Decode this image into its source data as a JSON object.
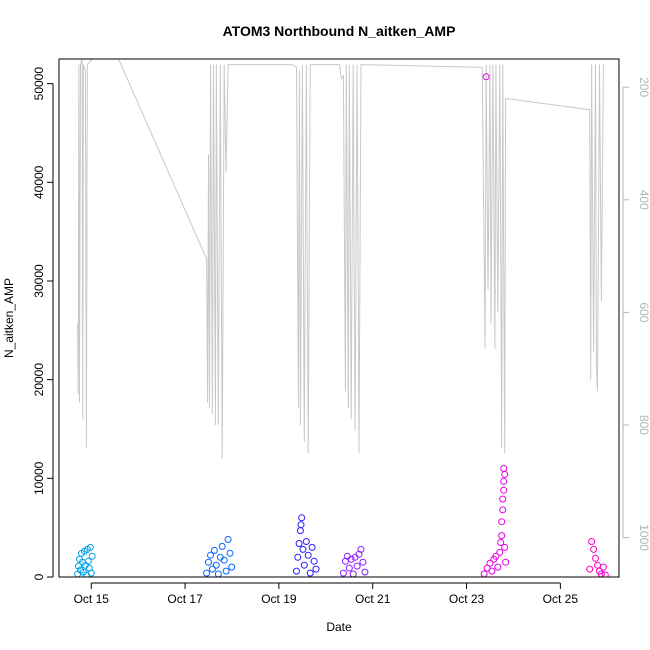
{
  "chart_data": {
    "type": "scatter",
    "title": "ATOM3 Northbound N_aitken_AMP",
    "xlabel": "Date",
    "ylabel": "N_aitken_AMP",
    "x_type": "date",
    "xlim": [
      "2013-10-14 07:30",
      "2013-10-26 06:00"
    ],
    "ylim": [
      0,
      52500
    ],
    "y_ticks": [
      "0",
      "10000",
      "20000",
      "30000",
      "40000",
      "50000"
    ],
    "x_ticks": [
      {
        "date": "2013-10-15",
        "label": "Oct 15"
      },
      {
        "date": "2013-10-17",
        "label": "Oct 17"
      },
      {
        "date": "2013-10-19",
        "label": "Oct 19"
      },
      {
        "date": "2013-10-21",
        "label": "Oct 21"
      },
      {
        "date": "2013-10-23",
        "label": "Oct 23"
      },
      {
        "date": "2013-10-25",
        "label": "Oct 25"
      }
    ],
    "y2_ticks": [
      "200",
      "400",
      "600",
      "800",
      "1000"
    ],
    "y2_lim": [
      150,
      1070
    ],
    "y2_reversed": true,
    "secondary_color": "#c8c8c8",
    "series": [
      {
        "color": "#00a2e8",
        "points": [
          {
            "x": "2013-10-14 17:00",
            "y": 300
          },
          {
            "x": "2013-10-14 17:30",
            "y": 1100
          },
          {
            "x": "2013-10-14 18:00",
            "y": 1800
          },
          {
            "x": "2013-10-14 18:30",
            "y": 700
          },
          {
            "x": "2013-10-14 19:00",
            "y": 2400
          },
          {
            "x": "2013-10-14 19:30",
            "y": 1500
          },
          {
            "x": "2013-10-14 20:00",
            "y": 500
          },
          {
            "x": "2013-10-14 20:30",
            "y": 2600
          },
          {
            "x": "2013-10-14 21:00",
            "y": 1200
          },
          {
            "x": "2013-10-14 21:30",
            "y": 200
          },
          {
            "x": "2013-10-14 22:00",
            "y": 2800
          },
          {
            "x": "2013-10-14 22:30",
            "y": 1600
          },
          {
            "x": "2013-10-14 23:00",
            "y": 900
          },
          {
            "x": "2013-10-14 23:30",
            "y": 3000
          },
          {
            "x": "2013-10-15 00:00",
            "y": 400
          },
          {
            "x": "2013-10-15 00:30",
            "y": 2100
          }
        ]
      },
      {
        "color": "#0066ff",
        "points": [
          {
            "x": "2013-10-17 11:00",
            "y": 400
          },
          {
            "x": "2013-10-17 12:00",
            "y": 1500
          },
          {
            "x": "2013-10-17 13:00",
            "y": 2200
          },
          {
            "x": "2013-10-17 14:00",
            "y": 800
          },
          {
            "x": "2013-10-17 15:00",
            "y": 2700
          },
          {
            "x": "2013-10-17 16:00",
            "y": 1200
          },
          {
            "x": "2013-10-17 17:00",
            "y": 300
          },
          {
            "x": "2013-10-17 18:00",
            "y": 2000
          },
          {
            "x": "2013-10-17 19:00",
            "y": 3100
          },
          {
            "x": "2013-10-17 20:00",
            "y": 1700
          },
          {
            "x": "2013-10-17 21:00",
            "y": 600
          },
          {
            "x": "2013-10-17 22:00",
            "y": 3800
          },
          {
            "x": "2013-10-17 23:00",
            "y": 2400
          },
          {
            "x": "2013-10-17 23:50",
            "y": 1000
          }
        ]
      },
      {
        "color": "#2a1dff",
        "points": [
          {
            "x": "2013-10-19 09:00",
            "y": 600
          },
          {
            "x": "2013-10-19 09:40",
            "y": 2000
          },
          {
            "x": "2013-10-19 10:20",
            "y": 3400
          },
          {
            "x": "2013-10-19 11:00",
            "y": 4700
          },
          {
            "x": "2013-10-19 11:20",
            "y": 5300
          },
          {
            "x": "2013-10-19 11:40",
            "y": 6000
          },
          {
            "x": "2013-10-19 12:20",
            "y": 2800
          },
          {
            "x": "2013-10-19 13:00",
            "y": 1200
          },
          {
            "x": "2013-10-19 14:00",
            "y": 3600
          },
          {
            "x": "2013-10-19 15:00",
            "y": 2200
          },
          {
            "x": "2013-10-19 16:00",
            "y": 400
          },
          {
            "x": "2013-10-19 17:00",
            "y": 3000
          },
          {
            "x": "2013-10-19 18:00",
            "y": 1600
          },
          {
            "x": "2013-10-19 19:00",
            "y": 800
          }
        ]
      },
      {
        "color": "#8a1dff",
        "points": [
          {
            "x": "2013-10-20 09:00",
            "y": 400
          },
          {
            "x": "2013-10-20 10:00",
            "y": 1600
          },
          {
            "x": "2013-10-20 11:00",
            "y": 2100
          },
          {
            "x": "2013-10-20 12:00",
            "y": 900
          },
          {
            "x": "2013-10-20 13:00",
            "y": 1800
          },
          {
            "x": "2013-10-20 14:00",
            "y": 300
          },
          {
            "x": "2013-10-20 15:00",
            "y": 2000
          },
          {
            "x": "2013-10-20 16:00",
            "y": 1100
          },
          {
            "x": "2013-10-20 17:00",
            "y": 2300
          },
          {
            "x": "2013-10-20 18:00",
            "y": 2800
          },
          {
            "x": "2013-10-20 19:00",
            "y": 1500
          },
          {
            "x": "2013-10-20 20:00",
            "y": 500
          }
        ]
      },
      {
        "color": "#e600e6",
        "points": [
          {
            "x": "2013-10-23 10:00",
            "y": 50700
          },
          {
            "x": "2013-10-23 09:00",
            "y": 300
          },
          {
            "x": "2013-10-23 10:30",
            "y": 900
          },
          {
            "x": "2013-10-23 12:00",
            "y": 1400
          },
          {
            "x": "2013-10-23 13:00",
            "y": 600
          },
          {
            "x": "2013-10-23 14:00",
            "y": 1800
          },
          {
            "x": "2013-10-23 15:00",
            "y": 2100
          },
          {
            "x": "2013-10-23 16:00",
            "y": 1000
          },
          {
            "x": "2013-10-23 17:00",
            "y": 2500
          },
          {
            "x": "2013-10-23 17:30",
            "y": 3500
          },
          {
            "x": "2013-10-23 18:00",
            "y": 4200
          },
          {
            "x": "2013-10-23 18:00",
            "y": 5600
          },
          {
            "x": "2013-10-23 18:30",
            "y": 6800
          },
          {
            "x": "2013-10-23 18:30",
            "y": 7900
          },
          {
            "x": "2013-10-23 19:00",
            "y": 8800
          },
          {
            "x": "2013-10-23 19:00",
            "y": 9700
          },
          {
            "x": "2013-10-23 19:30",
            "y": 10400
          },
          {
            "x": "2013-10-23 19:00",
            "y": 11000
          },
          {
            "x": "2013-10-23 19:30",
            "y": 3000
          },
          {
            "x": "2013-10-23 20:00",
            "y": 1500
          }
        ]
      },
      {
        "color": "#ff00c8",
        "points": [
          {
            "x": "2013-10-25 15:00",
            "y": 800
          },
          {
            "x": "2013-10-25 16:00",
            "y": 3600
          },
          {
            "x": "2013-10-25 17:00",
            "y": 2800
          },
          {
            "x": "2013-10-25 18:00",
            "y": 1900
          },
          {
            "x": "2013-10-25 19:00",
            "y": 1200
          },
          {
            "x": "2013-10-25 20:00",
            "y": 600
          },
          {
            "x": "2013-10-25 21:00",
            "y": 300
          },
          {
            "x": "2013-10-25 22:00",
            "y": 1000
          },
          {
            "x": "2013-10-25 23:00",
            "y": 200
          }
        ]
      }
    ],
    "secondary_line": [
      {
        "x": "2013-10-14 17:00",
        "y2": 620
      },
      {
        "x": "2013-10-14 17:20",
        "y2": 745
      },
      {
        "x": "2013-10-14 17:40",
        "y2": 160
      },
      {
        "x": "2013-10-14 18:00",
        "y2": 760
      },
      {
        "x": "2013-10-14 18:30",
        "y2": 160
      },
      {
        "x": "2013-10-14 19:20",
        "y2": 150
      },
      {
        "x": "2013-10-14 19:40",
        "y2": 790
      },
      {
        "x": "2013-10-14 20:00",
        "y2": 160
      },
      {
        "x": "2013-10-14 21:00",
        "y2": 170
      },
      {
        "x": "2013-10-14 21:30",
        "y2": 840
      },
      {
        "x": "2013-10-14 22:00",
        "y2": 160
      },
      {
        "x": "2013-10-15 00:30",
        "y2": 150
      },
      {
        "x": "2013-10-15 14:00",
        "y2": 150
      },
      {
        "x": "2013-10-17 11:00",
        "y2": 505
      },
      {
        "x": "2013-10-17 11:30",
        "y2": 760
      },
      {
        "x": "2013-10-17 12:00",
        "y2": 320
      },
      {
        "x": "2013-10-17 12:30",
        "y2": 770
      },
      {
        "x": "2013-10-17 13:00",
        "y2": 160
      },
      {
        "x": "2013-10-17 14:00",
        "y2": 780
      },
      {
        "x": "2013-10-17 14:30",
        "y2": 160
      },
      {
        "x": "2013-10-17 15:30",
        "y2": 800
      },
      {
        "x": "2013-10-17 16:00",
        "y2": 160
      },
      {
        "x": "2013-10-17 17:00",
        "y2": 800
      },
      {
        "x": "2013-10-17 18:00",
        "y2": 160
      },
      {
        "x": "2013-10-17 19:00",
        "y2": 860
      },
      {
        "x": "2013-10-17 20:00",
        "y2": 160
      },
      {
        "x": "2013-10-17 21:00",
        "y2": 350
      },
      {
        "x": "2013-10-17 22:00",
        "y2": 160
      },
      {
        "x": "2013-10-19 07:00",
        "y2": 160
      },
      {
        "x": "2013-10-19 09:00",
        "y2": 165
      },
      {
        "x": "2013-10-19 10:00",
        "y2": 770
      },
      {
        "x": "2013-10-19 10:30",
        "y2": 170
      },
      {
        "x": "2013-10-19 11:00",
        "y2": 800
      },
      {
        "x": "2013-10-19 12:00",
        "y2": 160
      },
      {
        "x": "2013-10-19 13:00",
        "y2": 830
      },
      {
        "x": "2013-10-19 14:00",
        "y2": 160
      },
      {
        "x": "2013-10-19 15:00",
        "y2": 850
      },
      {
        "x": "2013-10-19 16:00",
        "y2": 160
      },
      {
        "x": "2013-10-20 07:00",
        "y2": 160
      },
      {
        "x": "2013-10-20 08:00",
        "y2": 185
      },
      {
        "x": "2013-10-20 09:00",
        "y2": 180
      },
      {
        "x": "2013-10-20 10:00",
        "y2": 740
      },
      {
        "x": "2013-10-20 10:30",
        "y2": 160
      },
      {
        "x": "2013-10-20 11:30",
        "y2": 770
      },
      {
        "x": "2013-10-20 12:00",
        "y2": 160
      },
      {
        "x": "2013-10-20 13:00",
        "y2": 790
      },
      {
        "x": "2013-10-20 14:00",
        "y2": 160
      },
      {
        "x": "2013-10-20 15:00",
        "y2": 810
      },
      {
        "x": "2013-10-20 16:00",
        "y2": 160
      },
      {
        "x": "2013-10-20 17:00",
        "y2": 850
      },
      {
        "x": "2013-10-20 18:00",
        "y2": 160
      },
      {
        "x": "2013-10-23 08:00",
        "y2": 165
      },
      {
        "x": "2013-10-23 09:30",
        "y2": 665
      },
      {
        "x": "2013-10-23 10:00",
        "y2": 160
      },
      {
        "x": "2013-10-23 11:00",
        "y2": 560
      },
      {
        "x": "2013-10-23 12:00",
        "y2": 160
      },
      {
        "x": "2013-10-23 12:30",
        "y2": 620
      },
      {
        "x": "2013-10-23 13:30",
        "y2": 160
      },
      {
        "x": "2013-10-23 14:30",
        "y2": 665
      },
      {
        "x": "2013-10-23 15:00",
        "y2": 160
      },
      {
        "x": "2013-10-23 16:00",
        "y2": 600
      },
      {
        "x": "2013-10-23 17:00",
        "y2": 160
      },
      {
        "x": "2013-10-23 18:00",
        "y2": 840
      },
      {
        "x": "2013-10-23 18:30",
        "y2": 160
      },
      {
        "x": "2013-10-23 19:30",
        "y2": 850
      },
      {
        "x": "2013-10-23 20:00",
        "y2": 220
      },
      {
        "x": "2013-10-25 15:00",
        "y2": 240
      },
      {
        "x": "2013-10-25 15:30",
        "y2": 720
      },
      {
        "x": "2013-10-25 16:00",
        "y2": 160
      },
      {
        "x": "2013-10-25 17:00",
        "y2": 670
      },
      {
        "x": "2013-10-25 18:00",
        "y2": 160
      },
      {
        "x": "2013-10-25 18:30",
        "y2": 700
      },
      {
        "x": "2013-10-25 19:00",
        "y2": 740
      },
      {
        "x": "2013-10-25 20:00",
        "y2": 160
      },
      {
        "x": "2013-10-25 21:00",
        "y2": 580
      },
      {
        "x": "2013-10-25 22:00",
        "y2": 160
      }
    ]
  }
}
